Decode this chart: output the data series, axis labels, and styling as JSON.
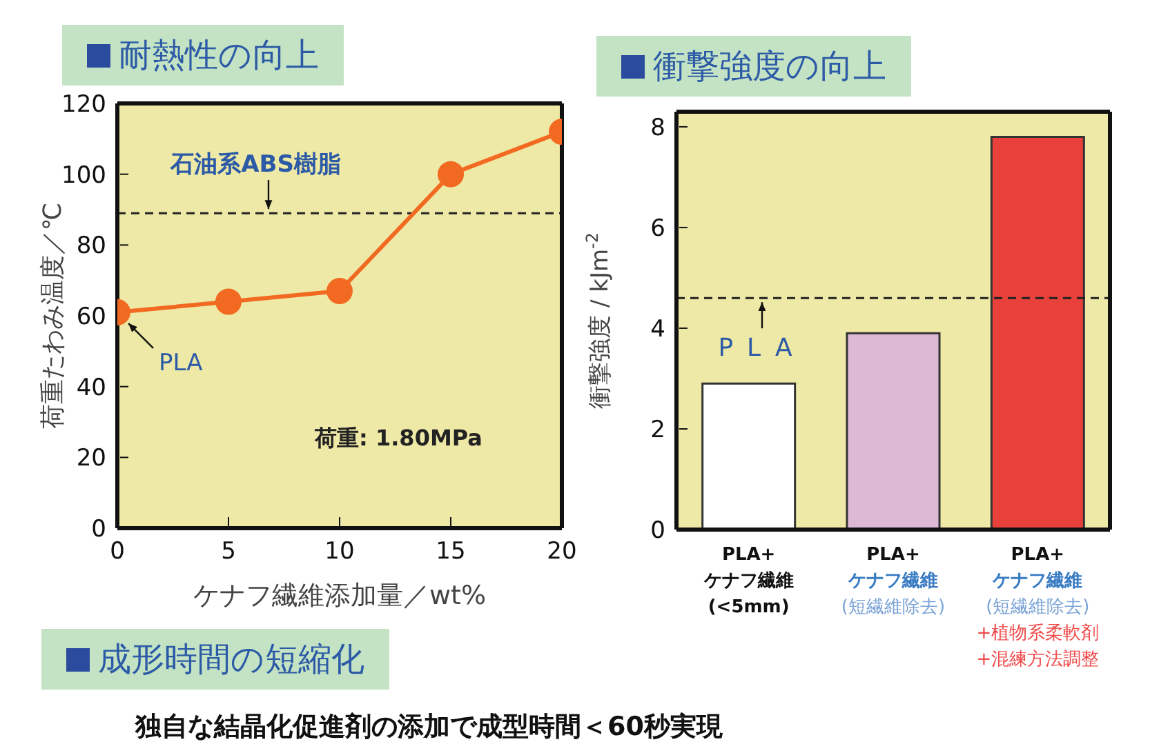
{
  "chart_data": [
    {
      "type": "line",
      "title": "耐熱性の向上",
      "x": [
        0,
        5,
        10,
        15,
        20
      ],
      "values": [
        61,
        64,
        67,
        100,
        112
      ],
      "color": "#f26a21",
      "marker": "circle",
      "xlim": [
        0,
        20
      ],
      "xticks": [
        0,
        5,
        10,
        15,
        20
      ],
      "ylim": [
        0,
        120
      ],
      "yticks": [
        0,
        20,
        40,
        60,
        80,
        100,
        120
      ],
      "xlabel": "ケナフ繊維添加量／wt%",
      "ylabel": "荷重たわみ温度／℃",
      "ref_lines": [
        {
          "axis": "y",
          "value": 89,
          "label": "石油系ABS樹脂",
          "line_style": "dashed",
          "color": "#222222"
        }
      ],
      "annotations": [
        {
          "text": "PLA",
          "x": 0,
          "y": 61
        },
        "荷重: 1.80MPa"
      ]
    },
    {
      "type": "bar",
      "title": "衝撃強度の向上",
      "categories": [
        "PLA+\nケナフ繊維\n(<5mm)",
        "PLA+\nケナフ繊維\n(短繊維除去)",
        "PLA+\nケナフ繊維\n(短繊維除去)\n+植物系柔軟剤\n+混練方法調整"
      ],
      "values": [
        2.9,
        3.9,
        7.8
      ],
      "colors": [
        "#ffffff",
        "#ddb9d5",
        "#e8413c"
      ],
      "ylim": [
        0,
        8.3
      ],
      "yticks": [
        0,
        2,
        4,
        6,
        8
      ],
      "ylabel": "衝撃強度 / kJm$^{-2}$",
      "ref_lines": [
        {
          "axis": "y",
          "value": 4.6,
          "label": "PLA",
          "line_style": "dashed",
          "color": "#222222"
        }
      ]
    },
    {
      "type": "other",
      "title": "成形時間の短縮化",
      "annotations": [
        "独自な結晶化促進剤の添加で成型時間＜60秒実現"
      ]
    }
  ]
}
